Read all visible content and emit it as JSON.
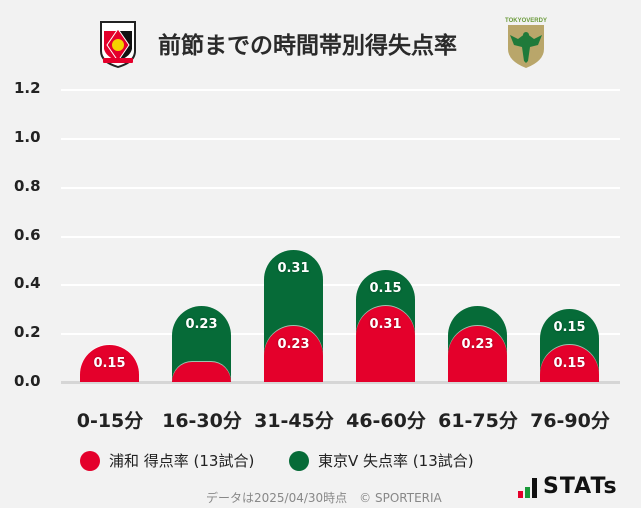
{
  "header": {
    "title": "前節までの時間帯別得失点率",
    "home_crest": "urawa-reds-crest",
    "away_crest": "tokyo-verdy-crest",
    "away_crest_text": "TOKYO VERDY"
  },
  "chart_data": {
    "type": "bar",
    "stacked": true,
    "title": "前節までの時間帯別得失点率",
    "categories": [
      "0-15分",
      "16-30分",
      "31-45分",
      "46-60分",
      "61-75分",
      "76-90分"
    ],
    "series": [
      {
        "name": "浦和 得点率 (13試合)",
        "color": "#e4002b",
        "values": [
          0.15,
          0.08,
          0.23,
          0.31,
          0.23,
          0.15
        ],
        "labels": [
          "0.15",
          "",
          "0.23",
          "0.31",
          "0.23",
          "0.15"
        ]
      },
      {
        "name": "東京V 失点率 (13試合)",
        "color": "#066b38",
        "values": [
          0.0,
          0.23,
          0.31,
          0.15,
          0.08,
          0.15
        ],
        "labels": [
          "",
          "0.23",
          "0.31",
          "0.15",
          "",
          "0.15"
        ]
      }
    ],
    "xlabel": "",
    "ylabel": "",
    "ylim": [
      0,
      1.2
    ],
    "yticks": [
      "0.0",
      "0.2",
      "0.4",
      "0.6",
      "0.8",
      "1.0",
      "1.2"
    ],
    "grid": true,
    "legend_position": "bottom"
  },
  "legend": {
    "items": [
      {
        "label": "浦和 得点率 (13試合)",
        "color": "#e4002b"
      },
      {
        "label": "東京V 失点率 (13試合)",
        "color": "#066b38"
      }
    ]
  },
  "footer": {
    "note": "データは2025/04/30時点　© SPORTERIA",
    "brand": "STATs"
  }
}
